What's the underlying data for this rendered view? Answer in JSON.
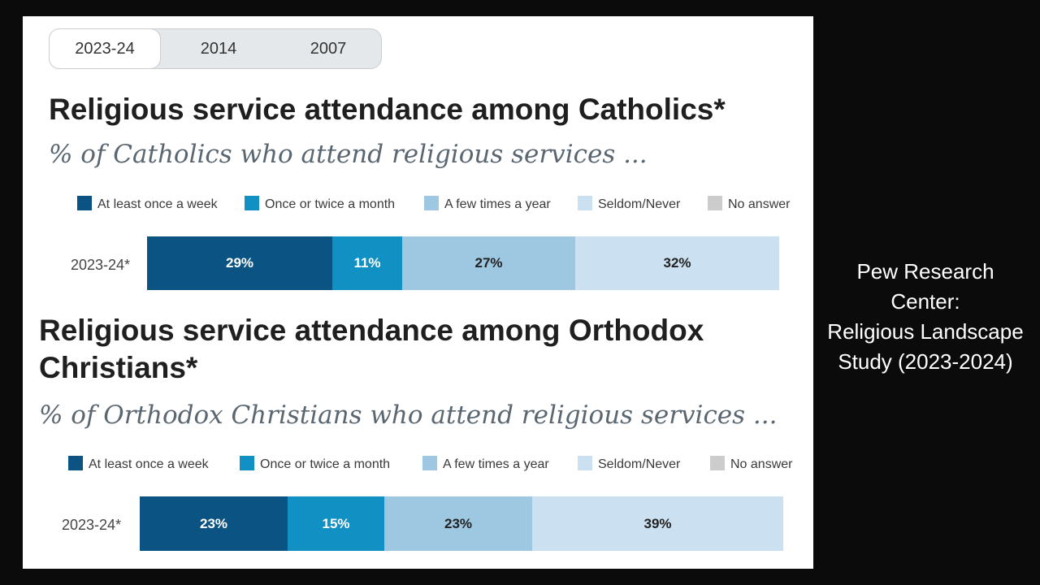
{
  "tabs": [
    "2023-24",
    "2014",
    "2007"
  ],
  "active_tab": "2023-24",
  "legend": {
    "items": [
      "At least once a week",
      "Once or twice a month",
      "A few times a year",
      "Seldom/Never",
      "No answer"
    ],
    "colors": [
      "#0b5383",
      "#1190c4",
      "#9ec8e2",
      "#cbe0f1",
      "#cccccc"
    ]
  },
  "caption": [
    "Pew Research",
    "Center:",
    "Religious Landscape",
    "Study (2023-2024)"
  ],
  "chart_data": [
    {
      "type": "bar",
      "orientation": "horizontal-stacked",
      "title": "Religious service attendance among Catholics*",
      "subtitle": "% of Catholics who attend religious services ...",
      "categories": [
        "2023-24*"
      ],
      "series": [
        {
          "name": "At least once a week",
          "values": [
            29
          ],
          "label": "29%"
        },
        {
          "name": "Once or twice a month",
          "values": [
            11
          ],
          "label": "11%"
        },
        {
          "name": "A few times a year",
          "values": [
            27
          ],
          "label": "27%"
        },
        {
          "name": "Seldom/Never",
          "values": [
            32
          ],
          "label": "32%"
        },
        {
          "name": "No answer",
          "values": [
            0
          ],
          "label": ""
        }
      ]
    },
    {
      "type": "bar",
      "orientation": "horizontal-stacked",
      "title_lines": [
        "Religious service attendance among Orthodox",
        "Christians*"
      ],
      "subtitle": "% of Orthodox Christians who attend religious services ...",
      "categories": [
        "2023-24*"
      ],
      "series": [
        {
          "name": "At least once a week",
          "values": [
            23
          ],
          "label": "23%"
        },
        {
          "name": "Once or twice a month",
          "values": [
            15
          ],
          "label": "15%"
        },
        {
          "name": "A few times a year",
          "values": [
            23
          ],
          "label": "23%"
        },
        {
          "name": "Seldom/Never",
          "values": [
            39
          ],
          "label": "39%"
        },
        {
          "name": "No answer",
          "values": [
            0
          ],
          "label": ""
        }
      ]
    }
  ]
}
